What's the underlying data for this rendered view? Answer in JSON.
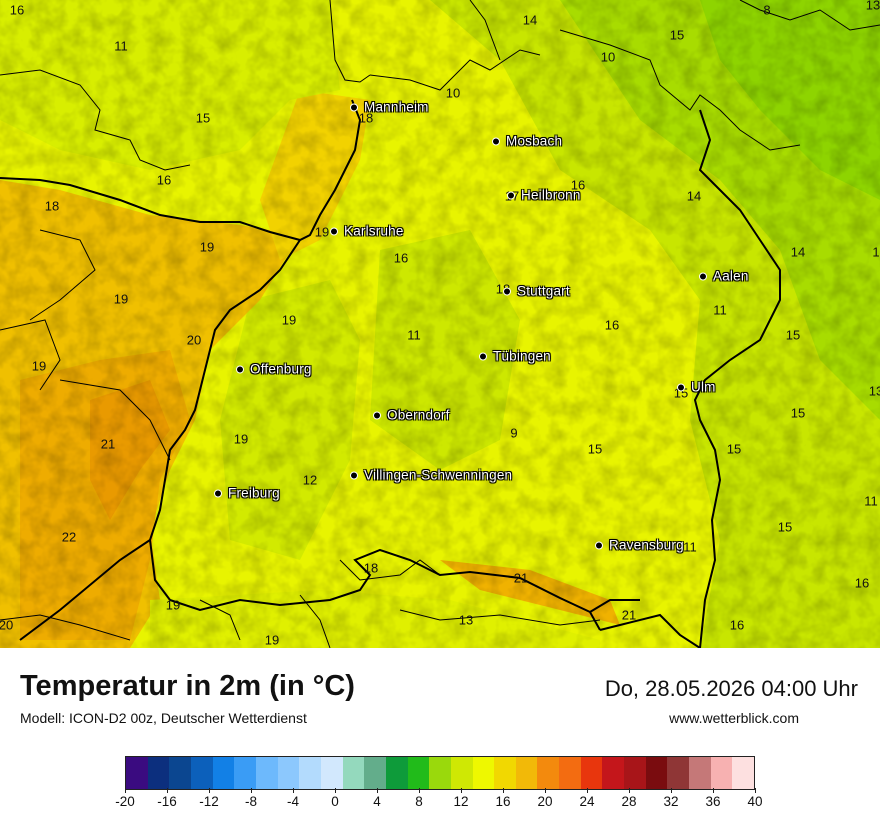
{
  "map": {
    "cities": [
      {
        "name": "Mannheim"
      },
      {
        "name": "Mosbach"
      },
      {
        "name": "Heilbronn"
      },
      {
        "name": "Karlsruhe"
      },
      {
        "name": "Stuttgart"
      },
      {
        "name": "Aalen"
      },
      {
        "name": "Tübingen"
      },
      {
        "name": "Offenburg"
      },
      {
        "name": "Ulm"
      },
      {
        "name": "Oberndorf"
      },
      {
        "name": "Villingen-Schwenningen"
      },
      {
        "name": "Freiburg"
      },
      {
        "name": "Ravensburg"
      }
    ],
    "values": [
      "16",
      "11",
      "14",
      "8",
      "15",
      "13",
      "10",
      "10",
      "15",
      "18",
      "16",
      "18",
      "19",
      "17",
      "16",
      "14",
      "19",
      "16",
      "14",
      "19",
      "18",
      "19",
      "11",
      "20",
      "16",
      "11",
      "15",
      "19",
      "13",
      "15",
      "21",
      "16",
      "19",
      "9",
      "15",
      "12",
      "15",
      "22",
      "18",
      "21",
      "11",
      "11",
      "15",
      "16",
      "19",
      "13",
      "21",
      "20",
      "16"
    ]
  },
  "footer": {
    "title": "Temperatur in 2m (in °C)",
    "model": "Modell: ICON-D2 00z, Deutscher Wetterdienst",
    "datetime": "Do, 28.05.2026 04:00 Uhr",
    "website": "www.wetterblick.com"
  },
  "legend": {
    "ticks": [
      "-20",
      "-16",
      "-12",
      "-8",
      "-4",
      "0",
      "4",
      "8",
      "12",
      "16",
      "20",
      "24",
      "28",
      "32",
      "36",
      "40"
    ],
    "colors": [
      "#3a0b80",
      "#0c2f7e",
      "#0b4690",
      "#0c60bb",
      "#1280e6",
      "#3a9cf5",
      "#6db9fc",
      "#8cc8fd",
      "#b3dbfd",
      "#d2e8fd",
      "#94d9bd",
      "#63ad8b",
      "#0e9b3a",
      "#21bb1a",
      "#9ad90c",
      "#cfe804",
      "#eef800",
      "#f1d801",
      "#f2b908",
      "#f38a0d",
      "#f36c11",
      "#e8360d",
      "#c4161b",
      "#a81519",
      "#7a0c0f",
      "#8f3636",
      "#c57878",
      "#f7b1b1",
      "#fde0e0"
    ]
  }
}
